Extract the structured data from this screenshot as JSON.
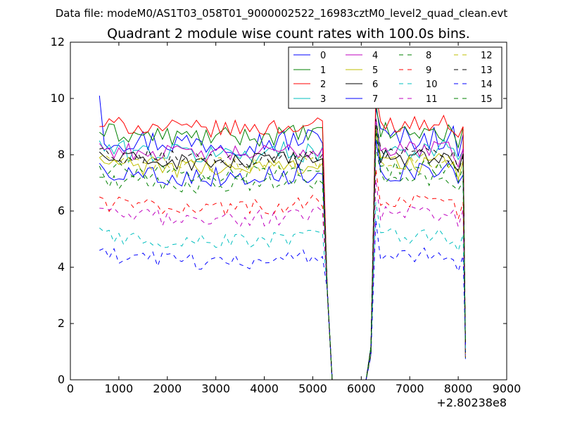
{
  "suptitle": "Data file: modeM0/AS1T03_058T01_9000002522_16983cztM0_level2_quad_clean.evt",
  "chart_data": {
    "type": "line",
    "title": "Quadrant 2 module wise count rates with 100.0s bins.",
    "xlabel": "",
    "ylabel": "",
    "x_offset_label": "+2.80238e8",
    "xlim": [
      0,
      9000
    ],
    "ylim": [
      0,
      12
    ],
    "xticks": [
      0,
      1000,
      2000,
      3000,
      4000,
      5000,
      6000,
      7000,
      8000,
      9000
    ],
    "yticks": [
      0,
      2,
      4,
      6,
      8,
      10,
      12
    ],
    "legend_location": "top-right",
    "legend_columns": 4,
    "x": [
      600,
      5200,
      5300,
      5400,
      6100,
      6200,
      6300,
      8000,
      8100,
      8150
    ],
    "series": [
      {
        "name": "0",
        "color": "#0000ff",
        "dash": "solid",
        "base": 8.6,
        "amp": 0.45,
        "start": 10.1
      },
      {
        "name": "1",
        "color": "#008000",
        "dash": "solid",
        "base": 8.8,
        "amp": 0.35,
        "start": 8.8
      },
      {
        "name": "2",
        "color": "#ff0000",
        "dash": "solid",
        "base": 9.1,
        "amp": 0.3,
        "start": 9.0
      },
      {
        "name": "3",
        "color": "#00bfbf",
        "dash": "solid",
        "base": 8.2,
        "amp": 0.4,
        "start": 8.5
      },
      {
        "name": "4",
        "color": "#bf00bf",
        "dash": "solid",
        "base": 8.2,
        "amp": 0.3,
        "start": 8.4
      },
      {
        "name": "5",
        "color": "#bfbf00",
        "dash": "solid",
        "base": 7.7,
        "amp": 0.35,
        "start": 7.9
      },
      {
        "name": "6",
        "color": "#000000",
        "dash": "solid",
        "base": 7.9,
        "amp": 0.3,
        "start": 8.1
      },
      {
        "name": "7",
        "color": "#0000ff",
        "dash": "solid",
        "base": 7.4,
        "amp": 0.35,
        "start": 7.7
      },
      {
        "name": "8",
        "color": "#008000",
        "dash": "dashed",
        "base": 7.1,
        "amp": 0.3,
        "start": 7.2
      },
      {
        "name": "9",
        "color": "#ff0000",
        "dash": "dashed",
        "base": 6.3,
        "amp": 0.3,
        "start": 6.5
      },
      {
        "name": "10",
        "color": "#00bfbf",
        "dash": "dashed",
        "base": 5.1,
        "amp": 0.3,
        "start": 5.4
      },
      {
        "name": "11",
        "color": "#bf00bf",
        "dash": "dashed",
        "base": 5.9,
        "amp": 0.3,
        "start": 6.1
      },
      {
        "name": "12",
        "color": "#bfbf00",
        "dash": "dashed",
        "base": 7.8,
        "amp": 0.3,
        "start": 7.9
      },
      {
        "name": "13",
        "color": "#000000",
        "dash": "dashed",
        "base": 8.0,
        "amp": 0.3,
        "start": 8.2
      },
      {
        "name": "14",
        "color": "#0000ff",
        "dash": "dashed",
        "base": 4.4,
        "amp": 0.3,
        "start": 4.6
      },
      {
        "name": "15",
        "color": "#008000",
        "dash": "dashed",
        "base": 7.5,
        "amp": 0.3,
        "start": 7.6
      }
    ]
  }
}
